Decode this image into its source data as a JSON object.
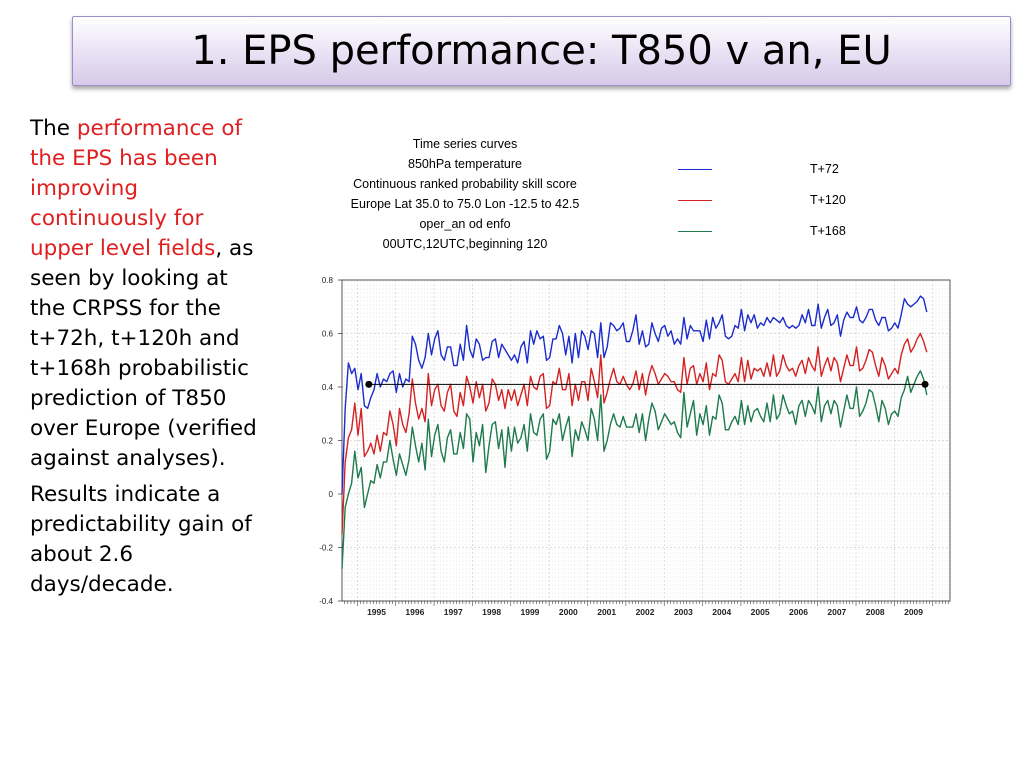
{
  "slide": {
    "title": "1. EPS performance: T850 v an, EU",
    "para1": {
      "pre": "The ",
      "highlight": "performance of the EPS has been improving continuously for upper level fields",
      "post": ", as seen by looking at the CRPSS for the t+72h, t+120h and t+168h probabilistic prediction of T850 over Europe (verified against analyses)."
    },
    "para2": "Results indicate a predictability gain of about 2.6 days/decade."
  },
  "chart_meta": {
    "lines": [
      "Time series curves",
      "850hPa temperature",
      "Continuous ranked probability skill score",
      "Europe  Lat  35.0 to 75.0 Lon  -12.5 to  42.5",
      "oper_an od enfo",
      "00UTC,12UTC,beginning 120"
    ]
  },
  "chart_data": {
    "type": "line",
    "x_start": 1994.6,
    "x_step": 0.0833,
    "xlim": [
      1994.6,
      2010.45
    ],
    "ylim": [
      -0.4,
      0.8
    ],
    "ytick_labels": [
      "0.8",
      "0.6",
      "0.4",
      "0.2",
      "0",
      "-0.2",
      "-0.4"
    ],
    "xtick_labels": [
      "1995",
      "1996",
      "1997",
      "1998",
      "1999",
      "2000",
      "2001",
      "2002",
      "2003",
      "2004",
      "2005",
      "2006",
      "2007",
      "2008",
      "2009"
    ],
    "reference_line": {
      "y": 0.41,
      "x_from": 1995.3,
      "x_to": 2009.8
    },
    "series": [
      {
        "name": "T+72",
        "color": "#1c2ccc",
        "values": [
          0.0,
          0.32,
          0.49,
          0.45,
          0.47,
          0.39,
          0.45,
          0.33,
          0.32,
          0.36,
          0.39,
          0.45,
          0.4,
          0.43,
          0.42,
          0.45,
          0.46,
          0.38,
          0.45,
          0.4,
          0.43,
          0.42,
          0.59,
          0.56,
          0.5,
          0.47,
          0.51,
          0.6,
          0.52,
          0.58,
          0.61,
          0.52,
          0.5,
          0.55,
          0.55,
          0.48,
          0.48,
          0.56,
          0.5,
          0.63,
          0.54,
          0.51,
          0.58,
          0.56,
          0.5,
          0.51,
          0.51,
          0.57,
          0.58,
          0.51,
          0.56,
          0.54,
          0.52,
          0.5,
          0.52,
          0.49,
          0.55,
          0.57,
          0.49,
          0.61,
          0.56,
          0.61,
          0.58,
          0.59,
          0.5,
          0.51,
          0.58,
          0.58,
          0.63,
          0.6,
          0.52,
          0.59,
          0.49,
          0.6,
          0.51,
          0.61,
          0.59,
          0.54,
          0.61,
          0.6,
          0.51,
          0.64,
          0.51,
          0.55,
          0.64,
          0.63,
          0.61,
          0.62,
          0.64,
          0.57,
          0.57,
          0.61,
          0.67,
          0.56,
          0.61,
          0.55,
          0.56,
          0.64,
          0.6,
          0.57,
          0.62,
          0.63,
          0.59,
          0.61,
          0.56,
          0.58,
          0.56,
          0.66,
          0.58,
          0.63,
          0.61,
          0.61,
          0.61,
          0.57,
          0.65,
          0.58,
          0.66,
          0.62,
          0.64,
          0.67,
          0.59,
          0.58,
          0.59,
          0.63,
          0.62,
          0.69,
          0.61,
          0.67,
          0.64,
          0.67,
          0.62,
          0.64,
          0.63,
          0.66,
          0.64,
          0.66,
          0.65,
          0.64,
          0.66,
          0.63,
          0.62,
          0.63,
          0.62,
          0.63,
          0.67,
          0.64,
          0.69,
          0.63,
          0.63,
          0.71,
          0.62,
          0.66,
          0.69,
          0.63,
          0.64,
          0.67,
          0.59,
          0.65,
          0.68,
          0.66,
          0.66,
          0.7,
          0.65,
          0.64,
          0.66,
          0.69,
          0.69,
          0.65,
          0.63,
          0.66,
          0.66,
          0.61,
          0.62,
          0.64,
          0.62,
          0.67,
          0.73,
          0.71,
          0.7,
          0.71,
          0.72,
          0.74,
          0.73,
          0.68
        ]
      },
      {
        "name": "T+120",
        "color": "#d42222",
        "values": [
          -0.15,
          0.12,
          0.21,
          0.24,
          0.34,
          0.22,
          0.32,
          0.14,
          0.16,
          0.19,
          0.15,
          0.22,
          0.16,
          0.23,
          0.22,
          0.31,
          0.26,
          0.18,
          0.32,
          0.26,
          0.23,
          0.3,
          0.43,
          0.34,
          0.28,
          0.32,
          0.27,
          0.45,
          0.33,
          0.39,
          0.41,
          0.33,
          0.31,
          0.38,
          0.41,
          0.31,
          0.29,
          0.38,
          0.33,
          0.44,
          0.4,
          0.34,
          0.42,
          0.36,
          0.41,
          0.31,
          0.34,
          0.43,
          0.41,
          0.35,
          0.39,
          0.32,
          0.39,
          0.35,
          0.39,
          0.33,
          0.37,
          0.41,
          0.33,
          0.44,
          0.4,
          0.39,
          0.44,
          0.45,
          0.32,
          0.33,
          0.42,
          0.41,
          0.47,
          0.39,
          0.39,
          0.45,
          0.33,
          0.41,
          0.35,
          0.42,
          0.42,
          0.35,
          0.47,
          0.42,
          0.36,
          0.52,
          0.34,
          0.38,
          0.43,
          0.47,
          0.42,
          0.41,
          0.44,
          0.41,
          0.39,
          0.41,
          0.46,
          0.39,
          0.45,
          0.37,
          0.44,
          0.48,
          0.45,
          0.41,
          0.43,
          0.45,
          0.44,
          0.42,
          0.42,
          0.39,
          0.38,
          0.51,
          0.41,
          0.47,
          0.48,
          0.41,
          0.45,
          0.42,
          0.49,
          0.39,
          0.45,
          0.44,
          0.52,
          0.5,
          0.42,
          0.41,
          0.43,
          0.45,
          0.42,
          0.51,
          0.42,
          0.5,
          0.43,
          0.47,
          0.46,
          0.47,
          0.44,
          0.49,
          0.44,
          0.52,
          0.44,
          0.46,
          0.52,
          0.48,
          0.46,
          0.47,
          0.44,
          0.48,
          0.5,
          0.45,
          0.51,
          0.48,
          0.46,
          0.55,
          0.44,
          0.48,
          0.51,
          0.46,
          0.51,
          0.49,
          0.42,
          0.47,
          0.52,
          0.48,
          0.48,
          0.55,
          0.46,
          0.47,
          0.5,
          0.54,
          0.53,
          0.48,
          0.44,
          0.51,
          0.48,
          0.43,
          0.45,
          0.47,
          0.45,
          0.52,
          0.56,
          0.58,
          0.53,
          0.55,
          0.58,
          0.6,
          0.57,
          0.53
        ]
      },
      {
        "name": "T+168",
        "color": "#1f7a4e",
        "values": [
          -0.28,
          -0.05,
          0.0,
          0.04,
          0.16,
          0.06,
          0.1,
          -0.05,
          0.0,
          0.05,
          0.04,
          0.11,
          0.06,
          0.12,
          0.12,
          0.2,
          0.13,
          0.07,
          0.15,
          0.11,
          0.07,
          0.13,
          0.25,
          0.18,
          0.12,
          0.19,
          0.09,
          0.28,
          0.14,
          0.22,
          0.26,
          0.16,
          0.12,
          0.21,
          0.24,
          0.15,
          0.15,
          0.23,
          0.17,
          0.3,
          0.28,
          0.12,
          0.23,
          0.18,
          0.26,
          0.08,
          0.18,
          0.26,
          0.27,
          0.17,
          0.24,
          0.1,
          0.25,
          0.16,
          0.25,
          0.19,
          0.21,
          0.26,
          0.16,
          0.3,
          0.23,
          0.22,
          0.28,
          0.3,
          0.13,
          0.16,
          0.28,
          0.26,
          0.3,
          0.2,
          0.25,
          0.29,
          0.14,
          0.24,
          0.2,
          0.27,
          0.24,
          0.2,
          0.32,
          0.28,
          0.2,
          0.37,
          0.16,
          0.2,
          0.26,
          0.3,
          0.26,
          0.25,
          0.29,
          0.25,
          0.25,
          0.25,
          0.3,
          0.23,
          0.3,
          0.2,
          0.28,
          0.34,
          0.31,
          0.24,
          0.27,
          0.3,
          0.28,
          0.26,
          0.27,
          0.23,
          0.21,
          0.38,
          0.25,
          0.3,
          0.35,
          0.22,
          0.3,
          0.26,
          0.33,
          0.22,
          0.29,
          0.28,
          0.37,
          0.34,
          0.24,
          0.24,
          0.27,
          0.29,
          0.26,
          0.35,
          0.26,
          0.33,
          0.27,
          0.31,
          0.32,
          0.29,
          0.27,
          0.34,
          0.27,
          0.37,
          0.28,
          0.3,
          0.37,
          0.33,
          0.3,
          0.31,
          0.26,
          0.33,
          0.35,
          0.29,
          0.35,
          0.33,
          0.3,
          0.4,
          0.27,
          0.33,
          0.35,
          0.3,
          0.35,
          0.33,
          0.25,
          0.31,
          0.37,
          0.32,
          0.32,
          0.4,
          0.29,
          0.31,
          0.34,
          0.39,
          0.38,
          0.33,
          0.27,
          0.35,
          0.32,
          0.26,
          0.3,
          0.31,
          0.29,
          0.36,
          0.39,
          0.44,
          0.38,
          0.41,
          0.44,
          0.46,
          0.43,
          0.37
        ]
      }
    ]
  }
}
